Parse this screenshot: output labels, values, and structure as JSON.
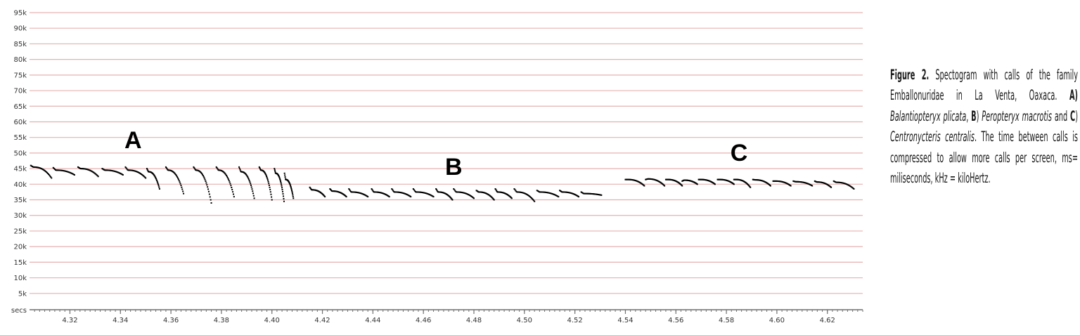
{
  "chart_data": {
    "type": "scatter",
    "title": "",
    "xlabel": "secs",
    "ylabel": "",
    "xlim": [
      4.304,
      4.634
    ],
    "ylim": [
      0,
      95000
    ],
    "x_ticks": [
      "4.32",
      "4.34",
      "4.36",
      "4.38",
      "4.40",
      "4.42",
      "4.44",
      "4.46",
      "4.48",
      "4.50",
      "4.52",
      "4.54",
      "4.56",
      "4.58",
      "4.60",
      "4.62"
    ],
    "x_tick_values": [
      4.32,
      4.34,
      4.36,
      4.38,
      4.4,
      4.42,
      4.44,
      4.46,
      4.48,
      4.5,
      4.52,
      4.54,
      4.56,
      4.58,
      4.6,
      4.62
    ],
    "y_ticks": [
      "5k",
      "10k",
      "15k",
      "20k",
      "25k",
      "30k",
      "35k",
      "40k",
      "45k",
      "50k",
      "55k",
      "60k",
      "65k",
      "70k",
      "75k",
      "80k",
      "85k",
      "90k",
      "95k"
    ],
    "y_tick_values": [
      5000,
      10000,
      15000,
      20000,
      25000,
      30000,
      35000,
      40000,
      45000,
      50000,
      55000,
      60000,
      65000,
      70000,
      75000,
      80000,
      85000,
      90000,
      95000
    ],
    "grid": true,
    "colors": {
      "grid": "#e7b0b0",
      "points": "#000000"
    },
    "groups": [
      {
        "label": "A",
        "label_pos": [
          4.345,
          51500
        ],
        "calls": [
          {
            "start": 4.3045,
            "end": 4.3127,
            "f_start": 46000,
            "f_plateau": 45500,
            "f_end": 42000
          },
          {
            "start": 4.3134,
            "end": 4.3218,
            "f_start": 45300,
            "f_plateau": 44500,
            "f_end": 43000
          },
          {
            "start": 4.3232,
            "end": 4.3312,
            "f_start": 45500,
            "f_plateau": 45000,
            "f_end": 42500
          },
          {
            "start": 4.3328,
            "end": 4.341,
            "f_start": 45000,
            "f_plateau": 44500,
            "f_end": 43000
          },
          {
            "start": 4.342,
            "end": 4.35,
            "f_start": 45500,
            "f_plateau": 44500,
            "f_end": 42000
          },
          {
            "start": 4.3505,
            "end": 4.3555,
            "f_start": 45000,
            "f_plateau": 44000,
            "f_end": 38500
          },
          {
            "start": 4.358,
            "end": 4.365,
            "f_start": 45500,
            "f_plateau": 44500,
            "f_end": 37000
          },
          {
            "start": 4.369,
            "end": 4.376,
            "f_start": 45500,
            "f_plateau": 44500,
            "f_end": 34000
          },
          {
            "start": 4.378,
            "end": 4.385,
            "f_start": 45500,
            "f_plateau": 44500,
            "f_end": 36000
          },
          {
            "start": 4.387,
            "end": 4.393,
            "f_start": 45500,
            "f_plateau": 44000,
            "f_end": 35500
          },
          {
            "start": 4.395,
            "end": 4.4,
            "f_start": 45500,
            "f_plateau": 44500,
            "f_end": 35000
          },
          {
            "start": 4.401,
            "end": 4.4048,
            "f_start": 45000,
            "f_plateau": 43500,
            "f_end": 34500
          },
          {
            "start": 4.405,
            "end": 4.4085,
            "f_start": 43500,
            "f_plateau": 41500,
            "f_end": 35500
          }
        ]
      },
      {
        "label": "B",
        "label_pos": [
          4.472,
          43000
        ],
        "calls": [
          {
            "start": 4.415,
            "end": 4.421,
            "f_start": 39000,
            "f_plateau": 38200,
            "f_end": 36000
          },
          {
            "start": 4.423,
            "end": 4.4295,
            "f_start": 38500,
            "f_plateau": 37800,
            "f_end": 36000
          },
          {
            "start": 4.4305,
            "end": 4.438,
            "f_start": 38500,
            "f_plateau": 37500,
            "f_end": 36000
          },
          {
            "start": 4.4395,
            "end": 4.4465,
            "f_start": 38500,
            "f_plateau": 37500,
            "f_end": 36000
          },
          {
            "start": 4.4475,
            "end": 4.455,
            "f_start": 38500,
            "f_plateau": 37500,
            "f_end": 36000
          },
          {
            "start": 4.456,
            "end": 4.464,
            "f_start": 38500,
            "f_plateau": 37500,
            "f_end": 36000
          },
          {
            "start": 4.465,
            "end": 4.4715,
            "f_start": 38500,
            "f_plateau": 37500,
            "f_end": 35000
          },
          {
            "start": 4.472,
            "end": 4.48,
            "f_start": 38500,
            "f_plateau": 37500,
            "f_end": 35500
          },
          {
            "start": 4.481,
            "end": 4.488,
            "f_start": 38000,
            "f_plateau": 37500,
            "f_end": 35000
          },
          {
            "start": 4.4885,
            "end": 4.495,
            "f_start": 38500,
            "f_plateau": 37500,
            "f_end": 35500
          },
          {
            "start": 4.496,
            "end": 4.504,
            "f_start": 38500,
            "f_plateau": 37500,
            "f_end": 34500
          },
          {
            "start": 4.505,
            "end": 4.5135,
            "f_start": 38000,
            "f_plateau": 37500,
            "f_end": 36000
          },
          {
            "start": 4.514,
            "end": 4.5215,
            "f_start": 38000,
            "f_plateau": 37500,
            "f_end": 36000
          },
          {
            "start": 4.5225,
            "end": 4.5305,
            "f_start": 37500,
            "f_plateau": 37000,
            "f_end": 36500
          }
        ]
      },
      {
        "label": "C",
        "label_pos": [
          4.585,
          47500
        ],
        "calls": [
          {
            "start": 4.54,
            "end": 4.5475,
            "f_start": 41500,
            "f_plateau": 41500,
            "f_end": 39500
          },
          {
            "start": 4.548,
            "end": 4.5555,
            "f_start": 41500,
            "f_plateau": 41700,
            "f_end": 39500
          },
          {
            "start": 4.556,
            "end": 4.5625,
            "f_start": 41500,
            "f_plateau": 41500,
            "f_end": 39500
          },
          {
            "start": 4.5625,
            "end": 4.5685,
            "f_start": 41000,
            "f_plateau": 41300,
            "f_end": 40000
          },
          {
            "start": 4.569,
            "end": 4.5755,
            "f_start": 41500,
            "f_plateau": 41500,
            "f_end": 40000
          },
          {
            "start": 4.5765,
            "end": 4.583,
            "f_start": 41500,
            "f_plateau": 41500,
            "f_end": 40000
          },
          {
            "start": 4.583,
            "end": 4.5895,
            "f_start": 41500,
            "f_plateau": 41500,
            "f_end": 39000
          },
          {
            "start": 4.5905,
            "end": 4.5975,
            "f_start": 41500,
            "f_plateau": 41400,
            "f_end": 39500
          },
          {
            "start": 4.5985,
            "end": 4.6055,
            "f_start": 41000,
            "f_plateau": 41000,
            "f_end": 39500
          },
          {
            "start": 4.6065,
            "end": 4.614,
            "f_start": 41000,
            "f_plateau": 40800,
            "f_end": 39500
          },
          {
            "start": 4.615,
            "end": 4.6215,
            "f_start": 41000,
            "f_plateau": 40700,
            "f_end": 39000
          },
          {
            "start": 4.6225,
            "end": 4.6305,
            "f_start": 41000,
            "f_plateau": 40600,
            "f_end": 38500
          }
        ]
      }
    ]
  },
  "caption": {
    "figure_label": "Figure 2.",
    "text_1": " Spectogram with calls of the family Emballonuridae in La Venta, Oaxaca. ",
    "label_a": "A)",
    "species_a": "Balantiopteryx plicata",
    "sep_1": ", ",
    "label_b": "B",
    "sep_2": ") ",
    "species_b": "Peropteryx macrotis",
    "sep_3": " and ",
    "label_c": "C",
    "sep_4": ") ",
    "species_c": "Centronycteris centralis",
    "text_2": ". The time between calls is compressed to allow more calls per screen, ms= miliseconds, kHz = kiloHertz."
  }
}
